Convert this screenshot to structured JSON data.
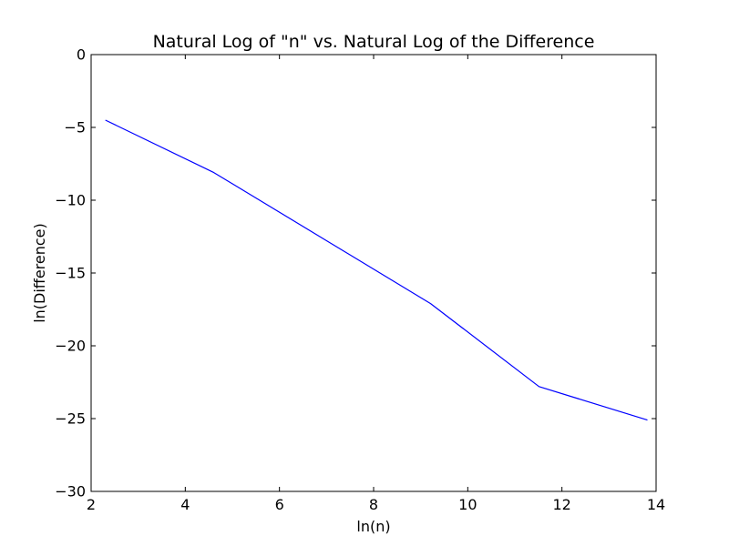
{
  "chart_data": {
    "type": "line",
    "title": "Natural Log of \"n\" vs. Natural Log of the Difference",
    "xlabel": "ln(n)",
    "ylabel": "ln(Difference)",
    "xlim": [
      2,
      14
    ],
    "ylim": [
      -30,
      0
    ],
    "x_ticks": [
      2,
      4,
      6,
      8,
      10,
      12,
      14
    ],
    "y_ticks": [
      0,
      -5,
      -10,
      -15,
      -20,
      -25,
      -30
    ],
    "x_tick_labels": [
      "2",
      "4",
      "6",
      "8",
      "10",
      "12",
      "14"
    ],
    "y_tick_labels": [
      "0",
      "−5",
      "−10",
      "−15",
      "−20",
      "−25",
      "−30"
    ],
    "grid": false,
    "series": [
      {
        "color": "#0000ff",
        "x": [
          2.303,
          4.605,
          6.908,
          9.21,
          11.513,
          13.816
        ],
        "y": [
          -4.5,
          -8.1,
          -12.6,
          -17.1,
          -22.8,
          -25.1
        ]
      }
    ]
  }
}
